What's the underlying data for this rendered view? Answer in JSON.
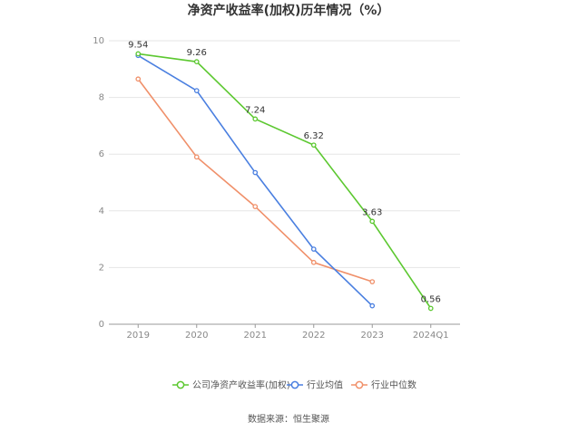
{
  "chart_data": {
    "type": "line",
    "title": "净资产收益率(加权)历年情况（%）",
    "xlabel": "",
    "ylabel": "",
    "categories": [
      "2019",
      "2020",
      "2021",
      "2022",
      "2023",
      "2024Q1"
    ],
    "ylim": [
      0,
      10
    ],
    "yticks": [
      "0",
      "2",
      "4",
      "6",
      "8",
      "10"
    ],
    "grid": true,
    "legend_position": "bottom",
    "series": [
      {
        "name": "公司净资产收益率(加权)",
        "color": "#5cc830",
        "values": [
          9.54,
          9.26,
          7.24,
          6.32,
          3.63,
          0.56
        ],
        "labels": [
          "9.54",
          "9.26",
          "7.24",
          "6.32",
          "3.63",
          "0.56"
        ]
      },
      {
        "name": "行业均值",
        "color": "#4a7fe0",
        "values": [
          9.48,
          8.24,
          5.35,
          2.65,
          0.65,
          null
        ]
      },
      {
        "name": "行业中位数",
        "color": "#f0906a",
        "values": [
          8.65,
          5.9,
          4.15,
          2.18,
          1.5,
          null
        ]
      }
    ],
    "source": "数据来源：恒生聚源"
  }
}
